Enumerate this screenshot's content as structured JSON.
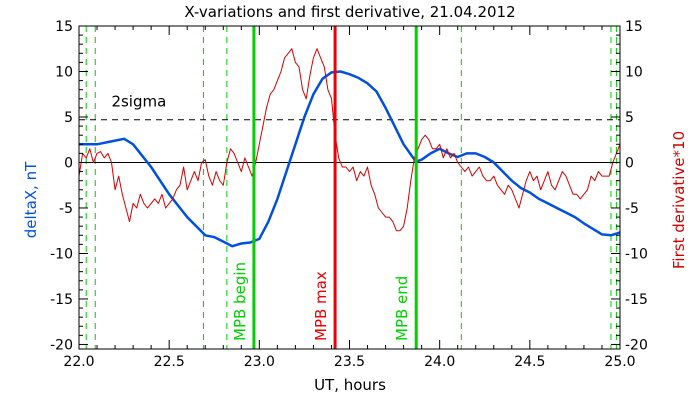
{
  "chart_data": {
    "type": "line",
    "title": "X-variations and first derivative, 21.04.2012",
    "xlabel": "UT, hours",
    "ylabel_left": "deltaX, nT",
    "ylabel_right": "First derivative*10",
    "xlim": [
      22.0,
      25.0
    ],
    "ylim": [
      -20.5,
      15
    ],
    "x_ticks": [
      22.0,
      22.5,
      23.0,
      23.5,
      24.0,
      24.5,
      25.0
    ],
    "x_tick_labels": [
      "22.0",
      "22.5",
      "23.0",
      "23.5",
      "24.0",
      "24.5",
      "25.0"
    ],
    "y_ticks": [
      15,
      10,
      5,
      0,
      -5,
      -10,
      -15,
      -20
    ],
    "y_tick_labels": [
      "15",
      "10",
      "5",
      "0",
      "-5",
      "-10",
      "-15",
      "-20"
    ],
    "grid": false,
    "colors": {
      "deltaX": "#0050e0",
      "derivative": "#d40000",
      "mpb_max": "#ee0000",
      "mpb_boundary": "#00d000",
      "dashed_green": "#00cc00",
      "reference": "#000000",
      "axes": "#000000"
    },
    "zero_line": 0,
    "sigma_line": {
      "label": "2sigma",
      "y": 4.7
    },
    "markers": [
      {
        "label": "MPB begin",
        "x": 22.97,
        "role": "begin"
      },
      {
        "label": "MPB max",
        "x": 23.42,
        "role": "max"
      },
      {
        "label": "MPB end",
        "x": 23.87,
        "role": "end"
      }
    ],
    "dashed_markers_x": [
      22.04,
      22.09,
      22.69,
      22.82,
      24.12,
      24.95,
      24.98
    ],
    "series": [
      {
        "name": "",
        "role": "deltaX",
        "axis": "left",
        "x": [
          22.0,
          22.1,
          22.2,
          22.25,
          22.3,
          22.4,
          22.5,
          22.6,
          22.7,
          22.75,
          22.8,
          22.85,
          22.9,
          22.95,
          23.0,
          23.05,
          23.1,
          23.15,
          23.2,
          23.25,
          23.3,
          23.35,
          23.4,
          23.45,
          23.5,
          23.55,
          23.6,
          23.65,
          23.7,
          23.75,
          23.8,
          23.85,
          23.87,
          23.9,
          23.95,
          24.0,
          24.05,
          24.1,
          24.15,
          24.2,
          24.25,
          24.3,
          24.35,
          24.4,
          24.45,
          24.5,
          24.55,
          24.6,
          24.65,
          24.7,
          24.75,
          24.8,
          24.85,
          24.9,
          24.95,
          25.0
        ],
        "y": [
          2.0,
          2.0,
          2.4,
          2.6,
          2.0,
          -0.5,
          -3.5,
          -6.0,
          -8.0,
          -8.2,
          -8.7,
          -9.2,
          -8.9,
          -8.8,
          -8.4,
          -6.5,
          -4.0,
          -1.0,
          2.0,
          5.0,
          7.5,
          9.2,
          9.9,
          10.0,
          9.7,
          9.3,
          8.7,
          7.8,
          6.0,
          4.0,
          2.0,
          0.6,
          0.1,
          0.3,
          1.0,
          1.5,
          1.0,
          0.6,
          1.0,
          1.0,
          0.6,
          0.0,
          -1.0,
          -2.0,
          -2.8,
          -3.3,
          -4.0,
          -4.5,
          -5.0,
          -5.5,
          -6.0,
          -6.7,
          -7.3,
          -7.9,
          -8.0,
          -7.7
        ]
      },
      {
        "name": "",
        "role": "derivative",
        "axis": "right",
        "x": [
          22.0,
          22.02,
          22.04,
          22.06,
          22.08,
          22.1,
          22.12,
          22.14,
          22.16,
          22.18,
          22.2,
          22.22,
          22.24,
          22.26,
          22.28,
          22.3,
          22.32,
          22.34,
          22.36,
          22.38,
          22.4,
          22.42,
          22.44,
          22.46,
          22.48,
          22.5,
          22.52,
          22.54,
          22.56,
          22.58,
          22.6,
          22.62,
          22.64,
          22.66,
          22.68,
          22.7,
          22.72,
          22.74,
          22.76,
          22.78,
          22.8,
          22.82,
          22.84,
          22.86,
          22.88,
          22.9,
          22.92,
          22.94,
          22.96,
          22.98,
          23.0,
          23.02,
          23.04,
          23.06,
          23.08,
          23.1,
          23.12,
          23.14,
          23.16,
          23.18,
          23.2,
          23.22,
          23.24,
          23.26,
          23.28,
          23.3,
          23.32,
          23.34,
          23.36,
          23.38,
          23.4,
          23.42,
          23.44,
          23.46,
          23.48,
          23.5,
          23.52,
          23.54,
          23.56,
          23.58,
          23.6,
          23.62,
          23.64,
          23.66,
          23.68,
          23.7,
          23.72,
          23.74,
          23.76,
          23.78,
          23.8,
          23.82,
          23.84,
          23.86,
          23.88,
          23.9,
          23.92,
          23.94,
          23.96,
          23.98,
          24.0,
          24.02,
          24.04,
          24.06,
          24.08,
          24.1,
          24.12,
          24.14,
          24.16,
          24.18,
          24.2,
          24.22,
          24.24,
          24.26,
          24.28,
          24.3,
          24.32,
          24.34,
          24.36,
          24.38,
          24.4,
          24.42,
          24.44,
          24.46,
          24.48,
          24.5,
          24.52,
          24.54,
          24.56,
          24.58,
          24.6,
          24.62,
          24.64,
          24.66,
          24.68,
          24.7,
          24.72,
          24.74,
          24.76,
          24.78,
          24.8,
          24.82,
          24.84,
          24.86,
          24.88,
          24.9,
          24.92,
          24.94,
          24.96,
          24.98,
          25.0
        ],
        "y": [
          -1.5,
          1.0,
          0.5,
          1.5,
          0.0,
          1.0,
          1.2,
          0.5,
          1.0,
          0.0,
          -3.0,
          -1.5,
          -3.5,
          -5.0,
          -6.5,
          -4.5,
          -5.0,
          -3.5,
          -4.5,
          -5.0,
          -4.5,
          -4.0,
          -4.5,
          -3.5,
          -5.0,
          -4.5,
          -4.0,
          -3.0,
          -2.5,
          -0.5,
          -3.0,
          -2.0,
          -1.0,
          -2.0,
          0.0,
          0.3,
          -1.5,
          -2.5,
          -1.0,
          -2.0,
          -2.5,
          0.0,
          1.5,
          1.0,
          0.0,
          -1.0,
          0.5,
          -0.5,
          -1.5,
          0.0,
          2.0,
          4.0,
          6.0,
          7.5,
          8.0,
          9.0,
          10.0,
          11.5,
          12.0,
          12.5,
          11.0,
          10.5,
          8.0,
          7.0,
          9.5,
          11.5,
          12.5,
          11.5,
          10.5,
          8.0,
          7.0,
          3.0,
          0.5,
          -0.5,
          -0.5,
          -1.0,
          -0.5,
          -2.0,
          -1.0,
          -1.5,
          -0.5,
          -2.5,
          -3.5,
          -5.0,
          -5.5,
          -6.0,
          -6.0,
          -6.5,
          -7.5,
          -7.5,
          -7.0,
          -5.0,
          -2.0,
          0.5,
          1.5,
          2.5,
          3.0,
          2.5,
          1.5,
          1.5,
          2.0,
          0.5,
          1.5,
          0.5,
          1.0,
          0.0,
          -0.5,
          -1.0,
          -0.5,
          -1.5,
          -1.0,
          -0.5,
          -1.5,
          -2.0,
          -2.0,
          -1.5,
          -2.5,
          -3.0,
          -3.5,
          -2.5,
          -3.0,
          -4.0,
          -5.0,
          -3.5,
          -2.0,
          -1.0,
          -2.0,
          -1.5,
          -3.0,
          -2.0,
          -1.0,
          -2.5,
          -3.0,
          -2.0,
          -1.0,
          -1.5,
          -2.5,
          -3.5,
          -3.5,
          -4.0,
          -3.5,
          -3.0,
          -1.5,
          -2.0,
          -1.0,
          -1.5,
          -1.5,
          -1.5,
          0.0,
          1.0,
          2.0
        ]
      }
    ]
  }
}
